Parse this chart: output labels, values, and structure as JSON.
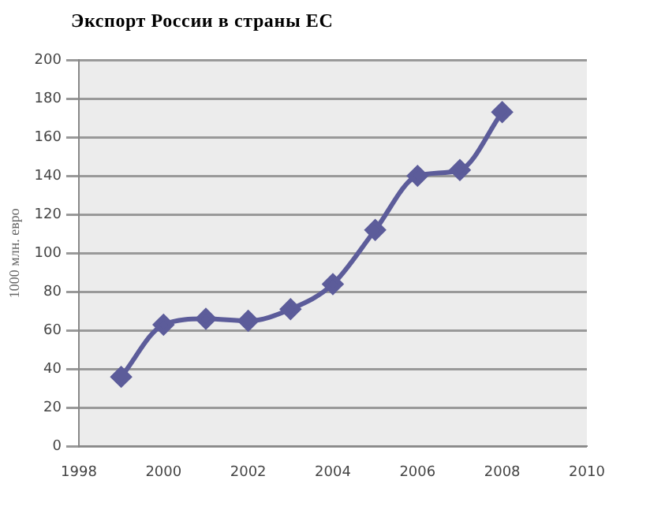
{
  "chart_data": {
    "type": "line",
    "title": "Экспорт России в страны ЕС",
    "ylabel": "1000 млн. евро",
    "x": [
      1999,
      2000,
      2001,
      2002,
      2003,
      2004,
      2005,
      2006,
      2007,
      2008
    ],
    "series": [
      {
        "color": "#5c5c9a",
        "values": [
          36,
          63,
          66,
          65,
          71,
          84,
          112,
          140,
          143,
          173
        ]
      }
    ],
    "xlim": [
      1998,
      2010
    ],
    "xticks": [
      1998,
      2000,
      2002,
      2004,
      2006,
      2008,
      2010
    ],
    "ylim": [
      0,
      200
    ],
    "yticks": [
      0,
      20,
      40,
      60,
      80,
      100,
      120,
      140,
      160,
      180,
      200
    ],
    "grid": "y",
    "legend": false,
    "marker": "diamond",
    "line_style": "solid"
  }
}
